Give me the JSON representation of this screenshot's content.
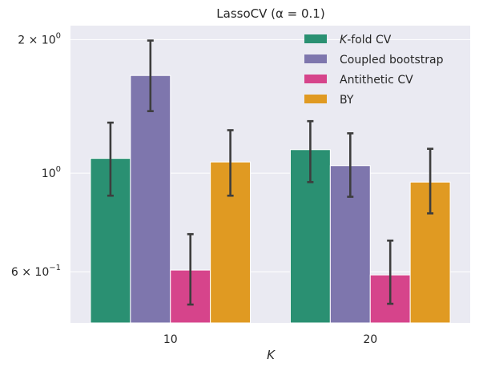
{
  "chart_data": {
    "type": "bar",
    "title": "LassoCV (α = 0.1)",
    "xlabel": "K",
    "ylabel": "",
    "yscale": "log",
    "ylim": [
      0.46,
      2.15
    ],
    "yticks": [
      {
        "value": 0.6,
        "base": "6 × 10",
        "exp": "−1"
      },
      {
        "value": 1.0,
        "base": "10",
        "exp": "0"
      },
      {
        "value": 2.0,
        "base": "2 × 10",
        "exp": "0"
      }
    ],
    "grid": true,
    "legend_position": "top-right",
    "categories": [
      "10",
      "20"
    ],
    "series": [
      {
        "name": "K-fold CV",
        "name_italic": "K",
        "name_rest": "-fold CV",
        "color": "#2a9072",
        "values": [
          1.08,
          1.13
        ],
        "err_low": [
          0.89,
          0.955
        ],
        "err_high": [
          1.3,
          1.31
        ]
      },
      {
        "name": "Coupled bootstrap",
        "color": "#7e76ad",
        "values": [
          1.66,
          1.04
        ],
        "err_low": [
          1.38,
          0.885
        ],
        "err_high": [
          1.99,
          1.23
        ]
      },
      {
        "name": "Antithetic CV",
        "color": "#d6448b",
        "values": [
          0.605,
          0.59
        ],
        "err_low": [
          0.506,
          0.508
        ],
        "err_high": [
          0.729,
          0.705
        ]
      },
      {
        "name": "BY",
        "color": "#e09a22",
        "values": [
          1.06,
          0.955
        ],
        "err_low": [
          0.89,
          0.812
        ],
        "err_high": [
          1.25,
          1.135
        ]
      }
    ]
  }
}
